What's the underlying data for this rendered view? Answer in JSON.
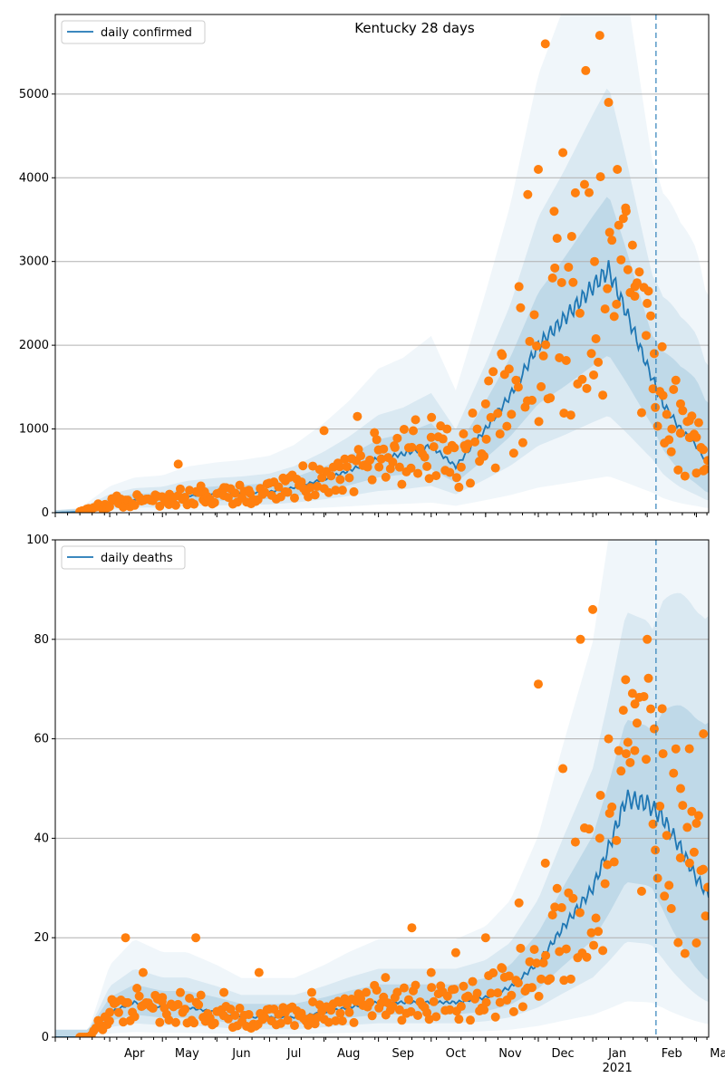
{
  "chart_data": [
    {
      "type": "line",
      "title": "Kentucky 28 days",
      "legend": {
        "label": "daily confirmed",
        "placement": "top-left"
      },
      "ylim": [
        0,
        5950
      ],
      "yticks": [
        0,
        1000,
        2000,
        3000,
        4000,
        5000
      ],
      "grid": "horizontal",
      "forecast_start": "Feb 6, 2021",
      "colors": {
        "line": "#1f77b4",
        "points": "#ff7f0e",
        "band": "#1f77b4",
        "grid": "#b0b0b0"
      },
      "series": [
        {
          "name": "daily confirmed",
          "x": [
            "Mar 1",
            "Mar 15",
            "Apr 1",
            "Apr 15",
            "May 1",
            "May 15",
            "Jun 1",
            "Jun 15",
            "Jul 1",
            "Jul 15",
            "Aug 1",
            "Aug 15",
            "Sep 1",
            "Sep 15",
            "Oct 1",
            "Oct 15",
            "Nov 1",
            "Nov 15",
            "Dec 1",
            "Dec 15",
            "Jan 1",
            "Jan 10",
            "Jan 20",
            "Feb 1",
            "Feb 10",
            "Feb 20",
            "Mar 1",
            "Mar 7"
          ],
          "values": [
            0,
            10,
            110,
            150,
            160,
            200,
            220,
            230,
            250,
            300,
            400,
            500,
            650,
            700,
            800,
            550,
            1000,
            1400,
            2000,
            2300,
            2700,
            2900,
            2400,
            1750,
            1300,
            1000,
            800,
            600
          ]
        }
      ],
      "observed_points": {
        "x": [
          "Mar 20",
          "Apr 5",
          "Apr 20",
          "May 5",
          "May 10",
          "May 25",
          "Jun 5",
          "Jun 20",
          "Jul 10",
          "Jul 20",
          "Aug 1",
          "Aug 10",
          "Aug 20",
          "Sep 1",
          "Sep 10",
          "Sep 20",
          "Oct 1",
          "Oct 10",
          "Oct 20",
          "Nov 1",
          "Nov 10",
          "Nov 20",
          "Nov 25",
          "Dec 1",
          "Dec 5",
          "Dec 10",
          "Dec 15",
          "Dec 20",
          "Dec 28",
          "Jan 2",
          "Jan 5",
          "Jan 10",
          "Jan 15",
          "Jan 20",
          "Jan 25",
          "Feb 1",
          "Feb 5",
          "Feb 10",
          "Feb 15",
          "Feb 20",
          "Feb 25",
          "Mar 1",
          "Mar 5"
        ],
        "values": [
          50,
          200,
          150,
          220,
          580,
          250,
          300,
          230,
          250,
          560,
          980,
          550,
          1150,
          750,
          800,
          780,
          900,
          1000,
          800,
          1300,
          1900,
          2700,
          3800,
          4100,
          5600,
          3600,
          4300,
          3300,
          5280,
          3000,
          5700,
          4900,
          4100,
          3600,
          2700,
          2500,
          1900,
          1400,
          1000,
          1300,
          1100,
          900,
          500
        ]
      }
    },
    {
      "type": "line",
      "title": "",
      "legend": {
        "label": "daily deaths",
        "placement": "top-left"
      },
      "ylim": [
        0,
        100
      ],
      "yticks": [
        0,
        20,
        40,
        60,
        80,
        100
      ],
      "grid": "horizontal",
      "forecast_start": "Feb 6, 2021",
      "xticks": [
        "Apr",
        "May",
        "Jun",
        "Jul",
        "Aug",
        "Sep",
        "Oct",
        "Nov",
        "Dec",
        "Jan",
        "Feb",
        "Mar"
      ],
      "x_year_label": "2021",
      "colors": {
        "line": "#1f77b4",
        "points": "#ff7f0e",
        "band": "#1f77b4",
        "grid": "#b0b0b0"
      },
      "series": [
        {
          "name": "daily deaths",
          "x": [
            "Mar 1",
            "Mar 20",
            "Apr 1",
            "Apr 15",
            "May 1",
            "May 15",
            "Jun 1",
            "Jun 15",
            "Jul 1",
            "Jul 15",
            "Aug 1",
            "Aug 15",
            "Sep 1",
            "Sep 15",
            "Oct 1",
            "Oct 15",
            "Nov 1",
            "Nov 15",
            "Dec 1",
            "Dec 15",
            "Jan 1",
            "Jan 10",
            "Jan 20",
            "Feb 1",
            "Feb 10",
            "Feb 20",
            "Mar 1",
            "Mar 7"
          ],
          "values": [
            0,
            0,
            5,
            7,
            6,
            6,
            5,
            4,
            4,
            4,
            5,
            6,
            7,
            7,
            7,
            7,
            8,
            10,
            15,
            22,
            30,
            38,
            48,
            47,
            44,
            38,
            32,
            29
          ]
        }
      ],
      "observed_points": {
        "x": [
          "Apr 1",
          "Apr 10",
          "Apr 20",
          "May 1",
          "May 20",
          "Jun 5",
          "Jun 25",
          "Jul 10",
          "Jul 25",
          "Aug 10",
          "Aug 25",
          "Sep 5",
          "Sep 20",
          "Oct 1",
          "Oct 15",
          "Nov 1",
          "Nov 10",
          "Nov 20",
          "Dec 1",
          "Dec 5",
          "Dec 15",
          "Dec 25",
          "Jan 1",
          "Jan 5",
          "Jan 10",
          "Jan 20",
          "Jan 25",
          "Feb 1",
          "Feb 5",
          "Feb 10",
          "Feb 20",
          "Feb 25",
          "Mar 1",
          "Mar 5"
        ],
        "values": [
          5,
          20,
          13,
          8,
          20,
          9,
          13,
          5,
          9,
          7,
          9,
          12,
          22,
          13,
          17,
          20,
          14,
          27,
          71,
          35,
          54,
          80,
          86,
          40,
          60,
          57,
          67,
          80,
          62,
          57,
          50,
          58,
          43,
          61
        ]
      }
    }
  ]
}
